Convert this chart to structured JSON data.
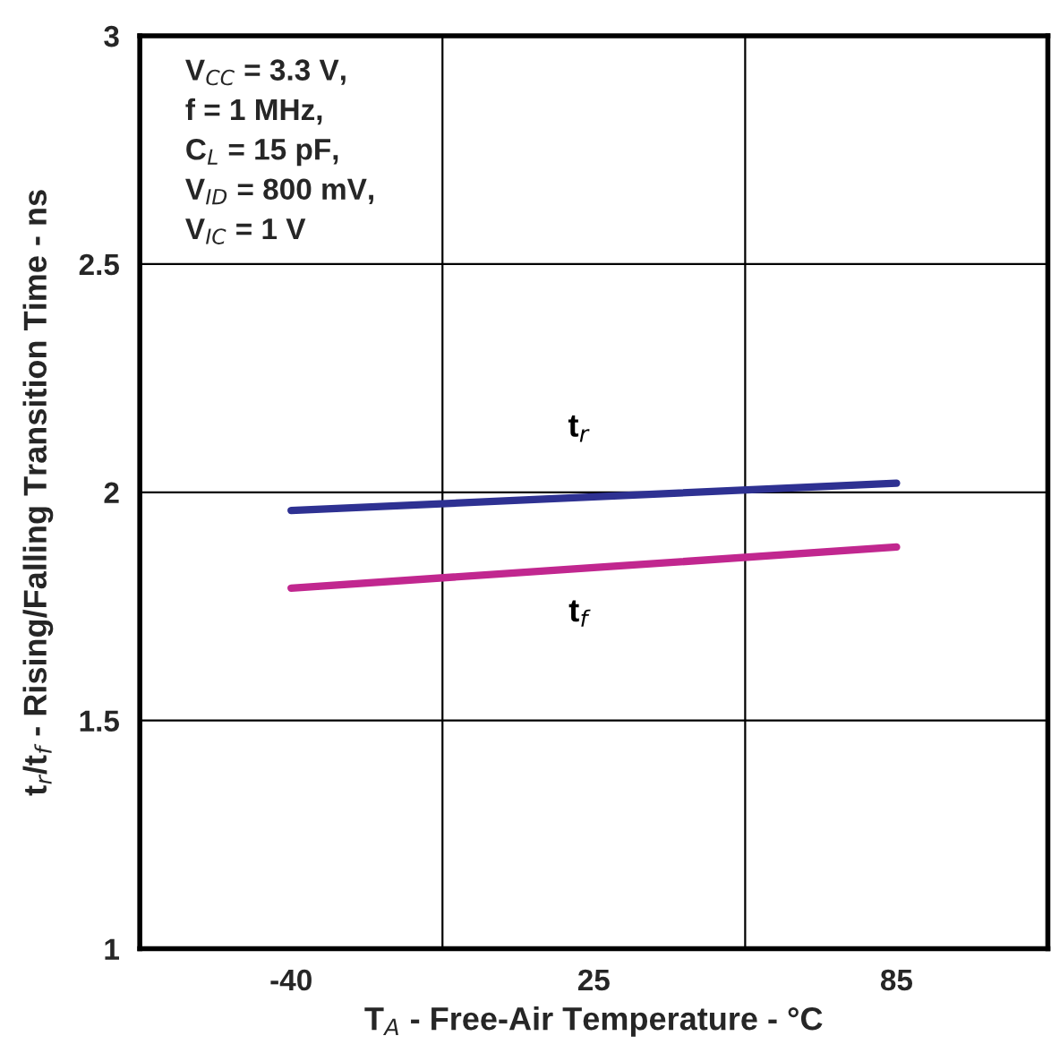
{
  "chart_data": {
    "type": "line",
    "xlabel": "T$_{A}$ - Free-Air Temperature - °C",
    "ylabel": "t$_{r}$/t$_{f}$ - Rising/Falling Transition Time - ns",
    "categories": [
      "-40",
      "25",
      "85"
    ],
    "series": [
      {
        "name": "t$_{r}$",
        "color": "#2e3192",
        "values": [
          1.96,
          1.99,
          2.02
        ]
      },
      {
        "name": "t$_{f}$",
        "color": "#c1278f",
        "values": [
          1.79,
          1.835,
          1.88
        ]
      }
    ],
    "ylim": [
      1,
      3
    ],
    "yticks": [
      1,
      1.5,
      2,
      2.5,
      3
    ],
    "grid": true,
    "marker": "none",
    "line_style": "solid",
    "annotations": [
      "V$_{CC}$ = 3.3 V,",
      "f = 1 MHz,",
      "C$_{L}$ = 15 pF,",
      "V$_{ID}$ = 800 mV,",
      "V$_{IC}$ = 1 V"
    ]
  }
}
